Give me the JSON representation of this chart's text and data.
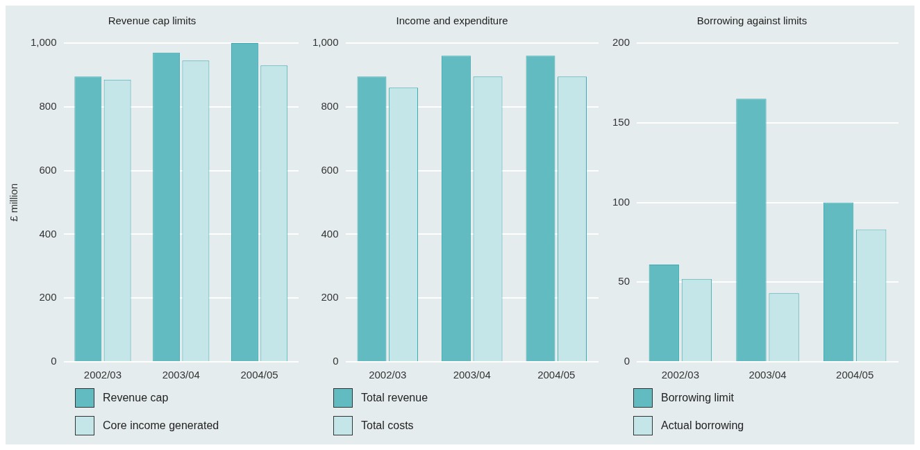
{
  "chart_data": [
    {
      "type": "bar",
      "title": "Revenue cap limits",
      "ylabel": "£ million",
      "categories": [
        "2002/03",
        "2003/04",
        "2004/05"
      ],
      "series": [
        {
          "name": "Revenue cap",
          "color": "#62bbc1",
          "values": [
            895,
            970,
            1000
          ]
        },
        {
          "name": "Core income generated",
          "color": "#c4e6e8",
          "values": [
            885,
            945,
            930
          ]
        }
      ],
      "ylim": [
        0,
        1000
      ],
      "yticks": [
        0,
        200,
        400,
        600,
        800,
        {
          "value": 1000,
          "label": "1,000"
        }
      ],
      "grid": "y",
      "legend": "bottom left"
    },
    {
      "type": "bar",
      "title": "Income and expenditure",
      "categories": [
        "2002/03",
        "2003/04",
        "2004/05"
      ],
      "series": [
        {
          "name": "Total revenue",
          "color": "#62bbc1",
          "values": [
            895,
            960,
            960
          ]
        },
        {
          "name": "Total costs",
          "color": "#c4e6e8",
          "values": [
            860,
            895,
            895
          ]
        }
      ],
      "ylim": [
        0,
        1000
      ],
      "yticks": [
        0,
        200,
        400,
        600,
        800,
        {
          "value": 1000,
          "label": "1,000"
        }
      ],
      "grid": "y",
      "legend": "bottom left"
    },
    {
      "type": "bar",
      "title": "Borrowing against limits",
      "categories": [
        "2002/03",
        "2003/04",
        "2004/05"
      ],
      "series": [
        {
          "name": "Borrowing limit",
          "color": "#62bbc1",
          "values": [
            61,
            165,
            100
          ]
        },
        {
          "name": "Actual borrowing",
          "color": "#c4e6e8",
          "values": [
            52,
            43,
            83
          ]
        }
      ],
      "ylim": [
        0,
        200
      ],
      "yticks": [
        0,
        50,
        100,
        150,
        200
      ],
      "grid": "y",
      "legend": "bottom left"
    }
  ]
}
